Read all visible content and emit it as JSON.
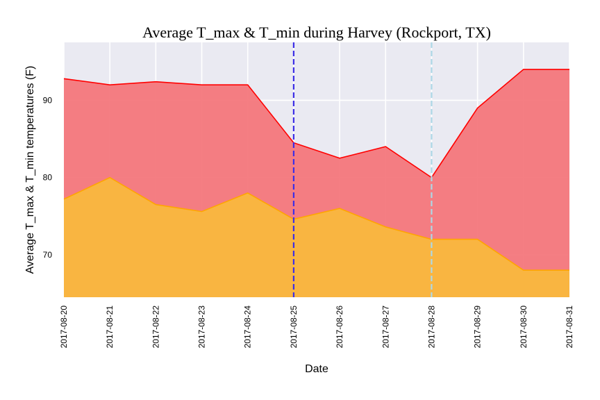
{
  "chart_data": {
    "type": "area",
    "title": "Average T_max & T_min during Harvey (Rockport, TX)",
    "xlabel": "Date",
    "ylabel": "Average T_max & T_min temperatures (F)",
    "categories": [
      "2017-08-20",
      "2017-08-21",
      "2017-08-22",
      "2017-08-23",
      "2017-08-24",
      "2017-08-25",
      "2017-08-26",
      "2017-08-27",
      "2017-08-28",
      "2017-08-29",
      "2017-08-30",
      "2017-08-31"
    ],
    "ylim": [
      64.5,
      97.5
    ],
    "yticks": [
      70,
      80,
      90
    ],
    "grid": true,
    "series": [
      {
        "key": "tmax",
        "values": [
          92.8,
          92.0,
          92.4,
          92.0,
          92.0,
          84.5,
          82.5,
          84.0,
          80.0,
          89.0,
          94.0,
          94.0
        ],
        "fill": "#f4747a",
        "line": "#ff0000"
      },
      {
        "key": "tmin",
        "values": [
          77.2,
          80.0,
          76.5,
          75.6,
          78.0,
          74.6,
          76.0,
          73.6,
          72.0,
          72.0,
          68.0,
          68.0
        ],
        "fill": "#f9b93c",
        "line": "#ffa500"
      }
    ],
    "vlines": [
      {
        "x": "2017-08-25",
        "color": "#3d2ee6",
        "style": "dashed"
      },
      {
        "x": "2017-08-28",
        "color": "#add8e6",
        "style": "dashed"
      }
    ],
    "background": "#eaeaf2"
  }
}
